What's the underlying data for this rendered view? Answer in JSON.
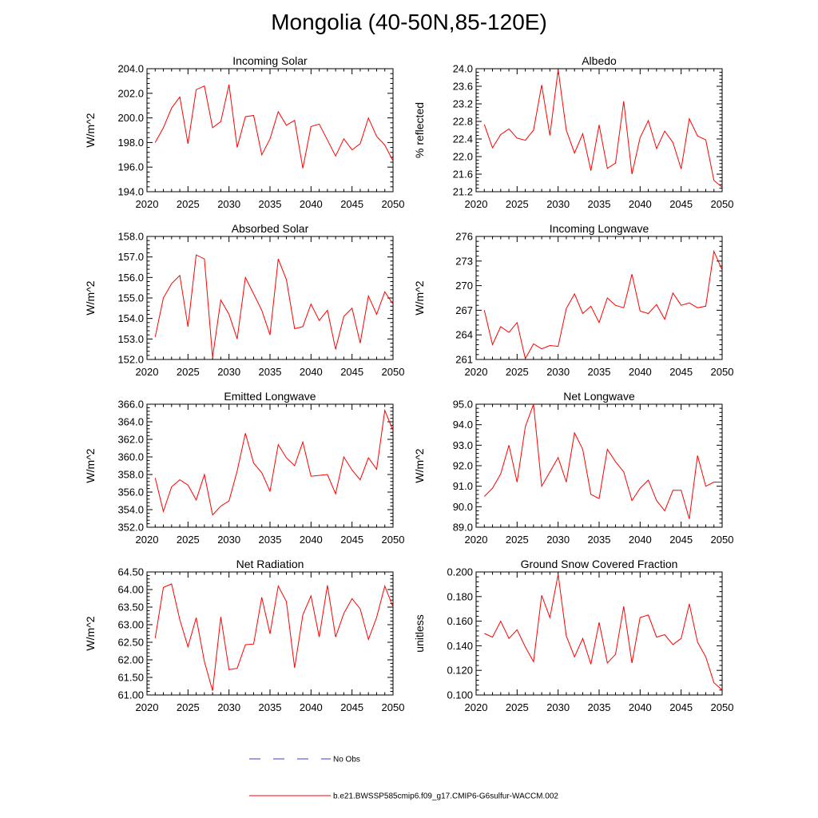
{
  "title": "Mongolia (40-50N,85-120E)",
  "legend": {
    "obs_label": "No Obs",
    "obs_color": "#3b3bd6",
    "model_label": "b.e21.BWSSP585cmip6.f09_g17.CMIP6-G6sulfur-WACCM.002",
    "model_color": "#ff0000"
  },
  "chart_data": [
    {
      "type": "line",
      "title": "Incoming Solar",
      "ylabel": "W/m^2",
      "xlim": [
        2020,
        2050
      ],
      "ylim": [
        194,
        204
      ],
      "xticks": [
        "2020",
        "2025",
        "2030",
        "2035",
        "2040",
        "2045",
        "2050"
      ],
      "yticks": [
        "194.0",
        "196.0",
        "198.0",
        "200.0",
        "202.0",
        "204.0"
      ],
      "x": [
        2021,
        2022,
        2023,
        2024,
        2025,
        2026,
        2027,
        2028,
        2029,
        2030,
        2031,
        2032,
        2033,
        2034,
        2035,
        2036,
        2037,
        2038,
        2039,
        2040,
        2041,
        2042,
        2043,
        2044,
        2045,
        2046,
        2047,
        2048,
        2049,
        2050
      ],
      "series": [
        {
          "values": [
            198.0,
            199.2,
            200.8,
            201.7,
            197.9,
            202.3,
            202.6,
            199.2,
            199.7,
            202.7,
            197.6,
            200.1,
            200.2,
            197.0,
            198.3,
            200.5,
            199.4,
            199.8,
            195.9,
            199.3,
            199.5,
            198.2,
            196.9,
            198.3,
            197.4,
            197.9,
            200.0,
            198.5,
            197.8,
            196.5
          ]
        }
      ]
    },
    {
      "type": "line",
      "title": "Albedo",
      "ylabel": "% reflected",
      "xlim": [
        2020,
        2050
      ],
      "ylim": [
        21.2,
        24.0
      ],
      "xticks": [
        "2020",
        "2025",
        "2030",
        "2035",
        "2040",
        "2045",
        "2050"
      ],
      "yticks": [
        "21.2",
        "21.6",
        "22.0",
        "22.4",
        "22.8",
        "23.2",
        "23.6",
        "24.0"
      ],
      "x": [
        2021,
        2022,
        2023,
        2024,
        2025,
        2026,
        2027,
        2028,
        2029,
        2030,
        2031,
        2032,
        2033,
        2034,
        2035,
        2036,
        2037,
        2038,
        2039,
        2040,
        2041,
        2042,
        2043,
        2044,
        2045,
        2046,
        2047,
        2048,
        2049,
        2050
      ],
      "series": [
        {
          "values": [
            22.73,
            22.2,
            22.5,
            22.63,
            22.42,
            22.37,
            22.6,
            23.63,
            22.48,
            23.98,
            22.6,
            22.08,
            22.52,
            21.68,
            22.72,
            21.73,
            21.85,
            23.26,
            21.6,
            22.43,
            22.82,
            22.18,
            22.58,
            22.32,
            21.72,
            22.86,
            22.47,
            22.38,
            21.46,
            21.3
          ]
        }
      ]
    },
    {
      "type": "line",
      "title": "Absorbed Solar",
      "ylabel": "W/m^2",
      "xlim": [
        2020,
        2050
      ],
      "ylim": [
        152,
        158
      ],
      "xticks": [
        "2020",
        "2025",
        "2030",
        "2035",
        "2040",
        "2045",
        "2050"
      ],
      "yticks": [
        "152.0",
        "153.0",
        "154.0",
        "155.0",
        "156.0",
        "157.0",
        "158.0"
      ],
      "x": [
        2021,
        2022,
        2023,
        2024,
        2025,
        2026,
        2027,
        2028,
        2029,
        2030,
        2031,
        2032,
        2033,
        2034,
        2035,
        2036,
        2037,
        2038,
        2039,
        2040,
        2041,
        2042,
        2043,
        2044,
        2045,
        2046,
        2047,
        2048,
        2049,
        2050
      ],
      "series": [
        {
          "values": [
            153.1,
            155.0,
            155.7,
            156.1,
            153.6,
            157.1,
            156.9,
            152.1,
            154.9,
            154.2,
            153.0,
            156.0,
            155.2,
            154.4,
            153.2,
            156.9,
            155.9,
            153.5,
            153.6,
            154.7,
            153.9,
            154.4,
            152.5,
            154.1,
            154.5,
            152.8,
            155.1,
            154.2,
            155.3,
            154.7
          ]
        }
      ]
    },
    {
      "type": "line",
      "title": "Incoming Longwave",
      "ylabel": "W/m^2",
      "xlim": [
        2020,
        2050
      ],
      "ylim": [
        261,
        276
      ],
      "xticks": [
        "2020",
        "2025",
        "2030",
        "2035",
        "2040",
        "2045",
        "2050"
      ],
      "yticks": [
        "261",
        "264",
        "267",
        "270",
        "273",
        "276"
      ],
      "x": [
        2021,
        2022,
        2023,
        2024,
        2025,
        2026,
        2027,
        2028,
        2029,
        2030,
        2031,
        2032,
        2033,
        2034,
        2035,
        2036,
        2037,
        2038,
        2039,
        2040,
        2041,
        2042,
        2043,
        2044,
        2045,
        2046,
        2047,
        2048,
        2049,
        2050
      ],
      "series": [
        {
          "values": [
            267.0,
            262.8,
            265.0,
            264.3,
            265.5,
            261.1,
            262.9,
            262.3,
            262.7,
            262.6,
            267.2,
            269.0,
            266.6,
            267.5,
            265.5,
            268.5,
            267.6,
            267.3,
            271.4,
            266.9,
            266.6,
            267.7,
            265.9,
            269.1,
            267.6,
            267.9,
            267.3,
            267.5,
            274.2,
            271.9
          ]
        }
      ]
    },
    {
      "type": "line",
      "title": "Emitted Longwave",
      "ylabel": "W/m^2",
      "xlim": [
        2020,
        2050
      ],
      "ylim": [
        352,
        366
      ],
      "xticks": [
        "2020",
        "2025",
        "2030",
        "2035",
        "2040",
        "2045",
        "2050"
      ],
      "yticks": [
        "352.0",
        "354.0",
        "356.0",
        "358.0",
        "360.0",
        "362.0",
        "364.0",
        "366.0"
      ],
      "x": [
        2021,
        2022,
        2023,
        2024,
        2025,
        2026,
        2027,
        2028,
        2029,
        2030,
        2031,
        2032,
        2033,
        2034,
        2035,
        2036,
        2037,
        2038,
        2039,
        2040,
        2041,
        2042,
        2043,
        2044,
        2045,
        2046,
        2047,
        2048,
        2049,
        2050
      ],
      "series": [
        {
          "values": [
            357.6,
            353.8,
            356.6,
            357.4,
            356.8,
            355.1,
            358.0,
            353.4,
            354.4,
            355.0,
            358.4,
            362.7,
            359.3,
            358.2,
            356.1,
            361.4,
            359.9,
            359.0,
            361.7,
            357.8,
            357.9,
            358.0,
            355.8,
            360.0,
            358.5,
            357.4,
            359.9,
            358.6,
            365.3,
            363.0
          ]
        }
      ]
    },
    {
      "type": "line",
      "title": "Net Longwave",
      "ylabel": "W/m^2",
      "xlim": [
        2020,
        2050
      ],
      "ylim": [
        89,
        95
      ],
      "xticks": [
        "2020",
        "2025",
        "2030",
        "2035",
        "2040",
        "2045",
        "2050"
      ],
      "yticks": [
        "89.0",
        "90.0",
        "91.0",
        "92.0",
        "93.0",
        "94.0",
        "95.0"
      ],
      "x": [
        2021,
        2022,
        2023,
        2024,
        2025,
        2026,
        2027,
        2028,
        2029,
        2030,
        2031,
        2032,
        2033,
        2034,
        2035,
        2036,
        2037,
        2038,
        2039,
        2040,
        2041,
        2042,
        2043,
        2044,
        2045,
        2046,
        2047,
        2048,
        2049,
        2050
      ],
      "series": [
        {
          "values": [
            90.5,
            90.9,
            91.6,
            93.0,
            91.2,
            93.9,
            95.0,
            91.0,
            91.7,
            92.4,
            91.2,
            93.6,
            92.8,
            90.6,
            90.4,
            92.8,
            92.2,
            91.7,
            90.3,
            90.9,
            91.3,
            90.3,
            89.8,
            90.8,
            90.8,
            89.4,
            92.5,
            91.0,
            91.2,
            91.2
          ]
        }
      ]
    },
    {
      "type": "line",
      "title": "Net Radiation",
      "ylabel": "W/m^2",
      "xlim": [
        2020,
        2050
      ],
      "ylim": [
        61.0,
        64.5
      ],
      "xticks": [
        "2020",
        "2025",
        "2030",
        "2035",
        "2040",
        "2045",
        "2050"
      ],
      "yticks": [
        "61.00",
        "61.50",
        "62.00",
        "62.50",
        "63.00",
        "63.50",
        "64.00",
        "64.50"
      ],
      "x": [
        2021,
        2022,
        2023,
        2024,
        2025,
        2026,
        2027,
        2028,
        2029,
        2030,
        2031,
        2032,
        2033,
        2034,
        2035,
        2036,
        2037,
        2038,
        2039,
        2040,
        2041,
        2042,
        2043,
        2044,
        2045,
        2046,
        2047,
        2048,
        2049,
        2050
      ],
      "series": [
        {
          "values": [
            62.62,
            64.06,
            64.16,
            63.14,
            62.37,
            63.2,
            61.95,
            61.12,
            63.22,
            61.72,
            61.76,
            62.43,
            62.45,
            63.78,
            62.74,
            64.1,
            63.66,
            61.77,
            63.28,
            63.82,
            62.65,
            64.12,
            62.65,
            63.32,
            63.74,
            63.45,
            62.58,
            63.21,
            64.1,
            63.5
          ]
        }
      ]
    },
    {
      "type": "line",
      "title": "Ground Snow Covered Fraction",
      "ylabel": "unitless",
      "xlim": [
        2020,
        2050
      ],
      "ylim": [
        0.1,
        0.2
      ],
      "xticks": [
        "2020",
        "2025",
        "2030",
        "2035",
        "2040",
        "2045",
        "2050"
      ],
      "yticks": [
        "0.100",
        "0.120",
        "0.140",
        "0.160",
        "0.180",
        "0.200"
      ],
      "x": [
        2021,
        2022,
        2023,
        2024,
        2025,
        2026,
        2027,
        2028,
        2029,
        2030,
        2031,
        2032,
        2033,
        2034,
        2035,
        2036,
        2037,
        2038,
        2039,
        2040,
        2041,
        2042,
        2043,
        2044,
        2045,
        2046,
        2047,
        2048,
        2049,
        2050
      ],
      "series": [
        {
          "values": [
            0.15,
            0.147,
            0.16,
            0.146,
            0.153,
            0.139,
            0.127,
            0.181,
            0.163,
            0.198,
            0.148,
            0.131,
            0.146,
            0.125,
            0.159,
            0.126,
            0.133,
            0.172,
            0.126,
            0.163,
            0.165,
            0.147,
            0.149,
            0.141,
            0.146,
            0.174,
            0.143,
            0.131,
            0.11,
            0.104
          ]
        }
      ]
    }
  ]
}
